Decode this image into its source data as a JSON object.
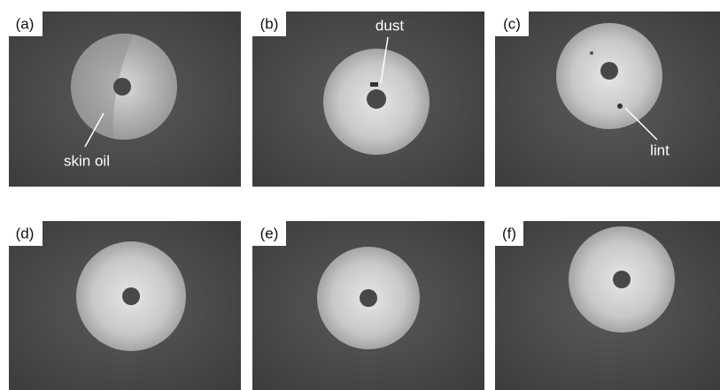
{
  "panels": [
    {
      "label": "(a)",
      "annotation": "skin oil"
    },
    {
      "label": "(b)",
      "annotation": "dust"
    },
    {
      "label": "(c)",
      "annotation": "lint"
    },
    {
      "label": "(d)"
    },
    {
      "label": "(e)"
    },
    {
      "label": "(f)"
    }
  ]
}
